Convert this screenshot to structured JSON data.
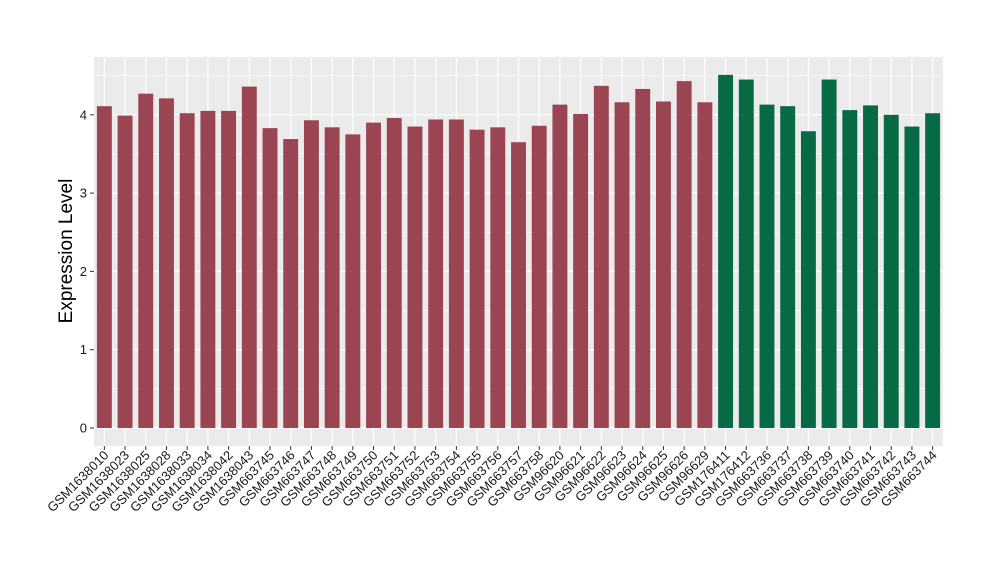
{
  "chart_data": {
    "type": "bar",
    "title": "",
    "xlabel": "",
    "ylabel": "Expression Level",
    "ylim": [
      -0.15,
      4.6
    ],
    "yticks": [
      0,
      1,
      2,
      3,
      4
    ],
    "grid": true,
    "legend": "none",
    "categories": [
      "GSM1638010",
      "GSM1638023",
      "GSM1638025",
      "GSM1638028",
      "GSM1638033",
      "GSM1638034",
      "GSM1638042",
      "GSM1638043",
      "GSM663745",
      "GSM663746",
      "GSM663747",
      "GSM663748",
      "GSM663749",
      "GSM663750",
      "GSM663751",
      "GSM663752",
      "GSM663753",
      "GSM663754",
      "GSM663755",
      "GSM663756",
      "GSM663757",
      "GSM663758",
      "GSM96620",
      "GSM96621",
      "GSM96622",
      "GSM96623",
      "GSM96624",
      "GSM96625",
      "GSM96626",
      "GSM96629",
      "GSM176411",
      "GSM176412",
      "GSM663736",
      "GSM663737",
      "GSM663738",
      "GSM663739",
      "GSM663740",
      "GSM663741",
      "GSM663742",
      "GSM663743",
      "GSM663744"
    ],
    "values": [
      4.11,
      3.99,
      4.27,
      4.21,
      4.02,
      4.05,
      4.05,
      4.36,
      3.83,
      3.69,
      3.93,
      3.84,
      3.75,
      3.9,
      3.96,
      3.85,
      3.94,
      3.94,
      3.81,
      3.84,
      3.65,
      3.86,
      4.13,
      4.01,
      4.37,
      4.16,
      4.33,
      4.17,
      4.43,
      4.16,
      4.51,
      4.45,
      4.13,
      4.11,
      3.79,
      4.45,
      4.06,
      4.12,
      4.0,
      3.85,
      4.02
    ],
    "groups": [
      "a",
      "a",
      "a",
      "a",
      "a",
      "a",
      "a",
      "a",
      "a",
      "a",
      "a",
      "a",
      "a",
      "a",
      "a",
      "a",
      "a",
      "a",
      "a",
      "a",
      "a",
      "a",
      "a",
      "a",
      "a",
      "a",
      "a",
      "a",
      "a",
      "a",
      "b",
      "b",
      "b",
      "b",
      "b",
      "b",
      "b",
      "b",
      "b",
      "b",
      "b"
    ],
    "colors": {
      "a": "#9b4452",
      "b": "#066a45",
      "panel": "#ebebeb",
      "grid": "#ffffff"
    }
  }
}
